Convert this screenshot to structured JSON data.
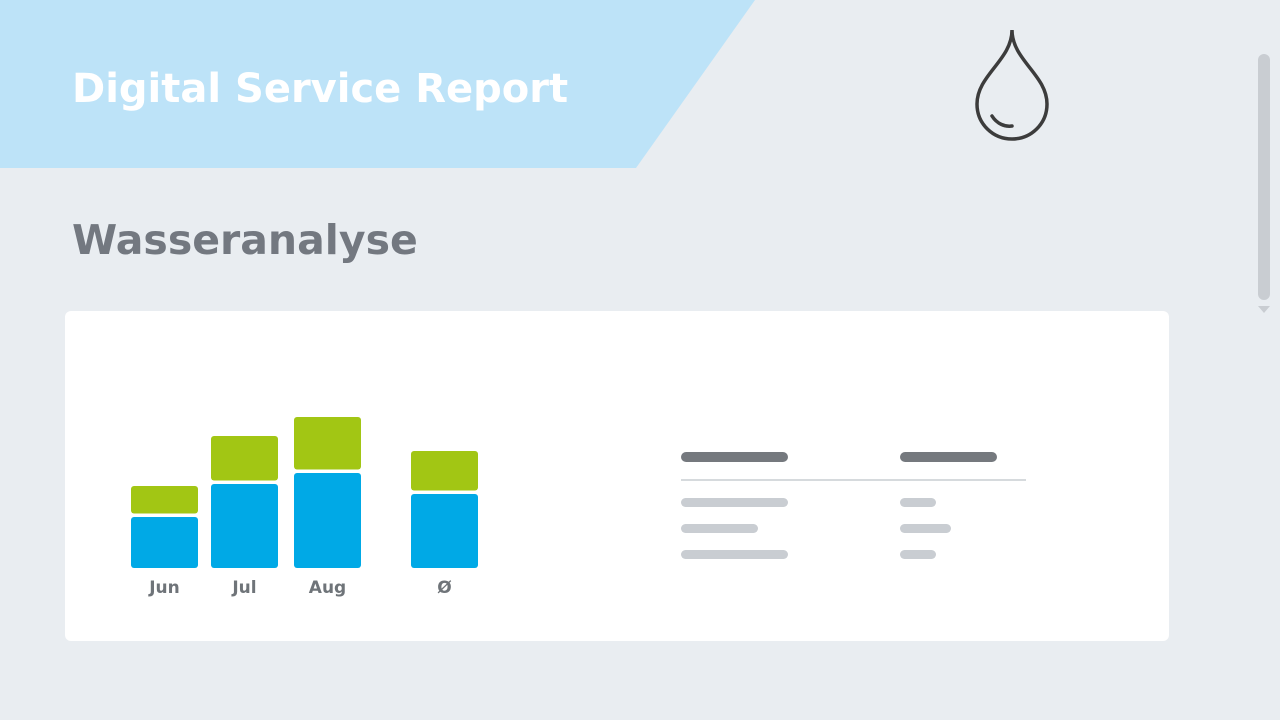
{
  "header": {
    "title": "Digital Service Report"
  },
  "section": {
    "title": "Wasseranalyse"
  },
  "chart_data": {
    "type": "bar",
    "stacked": true,
    "categories": [
      "Jun",
      "Jul",
      "Aug",
      "Ø"
    ],
    "series": [
      {
        "color": "#00a9e6",
        "values": [
          51,
          84,
          95,
          74
        ]
      },
      {
        "color": "#a2c614",
        "values": [
          31,
          48,
          56,
          43
        ]
      }
    ],
    "ylim": [
      0,
      160
    ]
  }
}
